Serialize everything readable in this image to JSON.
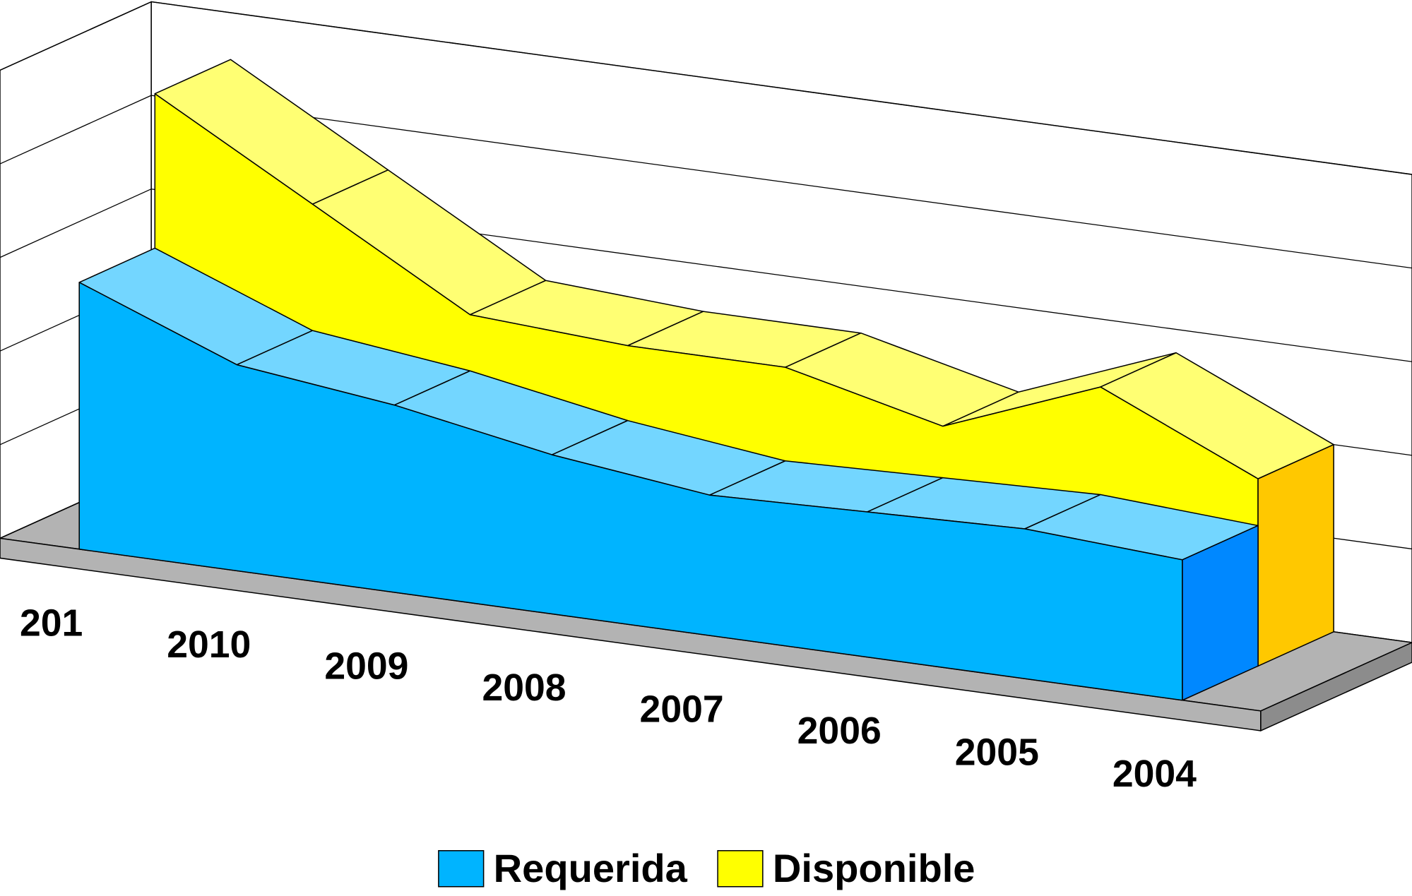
{
  "chart_data": {
    "type": "area3d",
    "categories": [
      "201",
      "2010",
      "2009",
      "2008",
      "2007",
      "2006",
      "2005",
      "2004"
    ],
    "series": [
      {
        "name": "Requerida",
        "color": "#00b4ff",
        "values": [
          2.85,
          2.2,
          2.0,
          1.7,
          1.5,
          1.55,
          1.6,
          1.5
        ]
      },
      {
        "name": "Disponible",
        "color": "#ffff00",
        "values": [
          4.5,
          3.55,
          2.6,
          2.5,
          2.5,
          2.1,
          2.75,
          2.0
        ]
      }
    ],
    "ylim": [
      0,
      5
    ],
    "yticks": [
      0,
      1,
      2,
      3,
      4,
      5
    ],
    "grid": true,
    "legend": "bottom"
  }
}
